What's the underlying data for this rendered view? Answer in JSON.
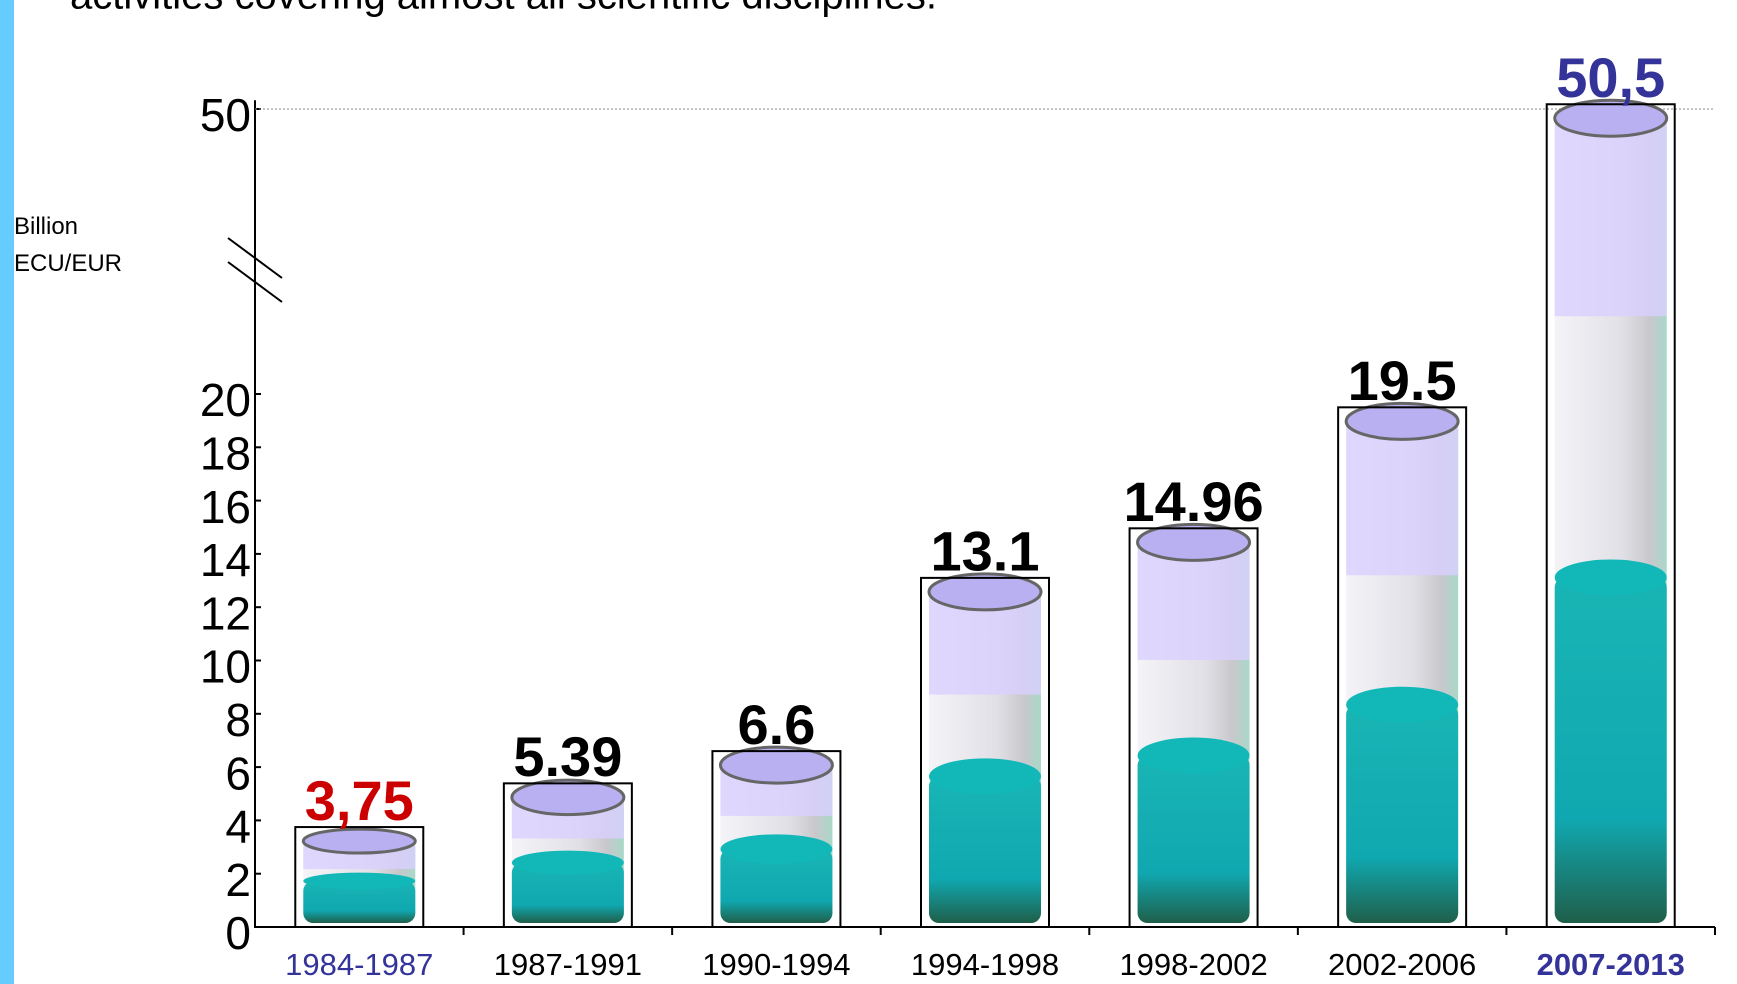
{
  "chart_data": {
    "type": "bar",
    "title": "activities covering almost all scientific disciplines.",
    "y_label": "Billion ECU/EUR",
    "categories": [
      "1984-1987",
      "1987-1991",
      "1990-1994",
      "1994-1998",
      "1998-2002",
      "2002-2006",
      "2007-2013"
    ],
    "values": [
      3.75,
      5.39,
      6.6,
      13.1,
      14.96,
      19.5,
      50.5
    ],
    "value_labels": [
      "3,75",
      "5.39",
      "6.6",
      "13.1",
      "14.96",
      "19.5",
      "50,5"
    ],
    "label_colors": [
      "#cc0000",
      "#000000",
      "#000000",
      "#000000",
      "#000000",
      "#000000",
      "#333399"
    ],
    "category_colors": [
      "#333399",
      "#000000",
      "#000000",
      "#000000",
      "#000000",
      "#000000",
      "#333399"
    ],
    "ylim": [
      0,
      50.5
    ],
    "yticks": [
      0,
      2,
      4,
      6,
      8,
      10,
      12,
      14,
      16,
      18,
      20,
      50
    ],
    "axis_break": true
  }
}
